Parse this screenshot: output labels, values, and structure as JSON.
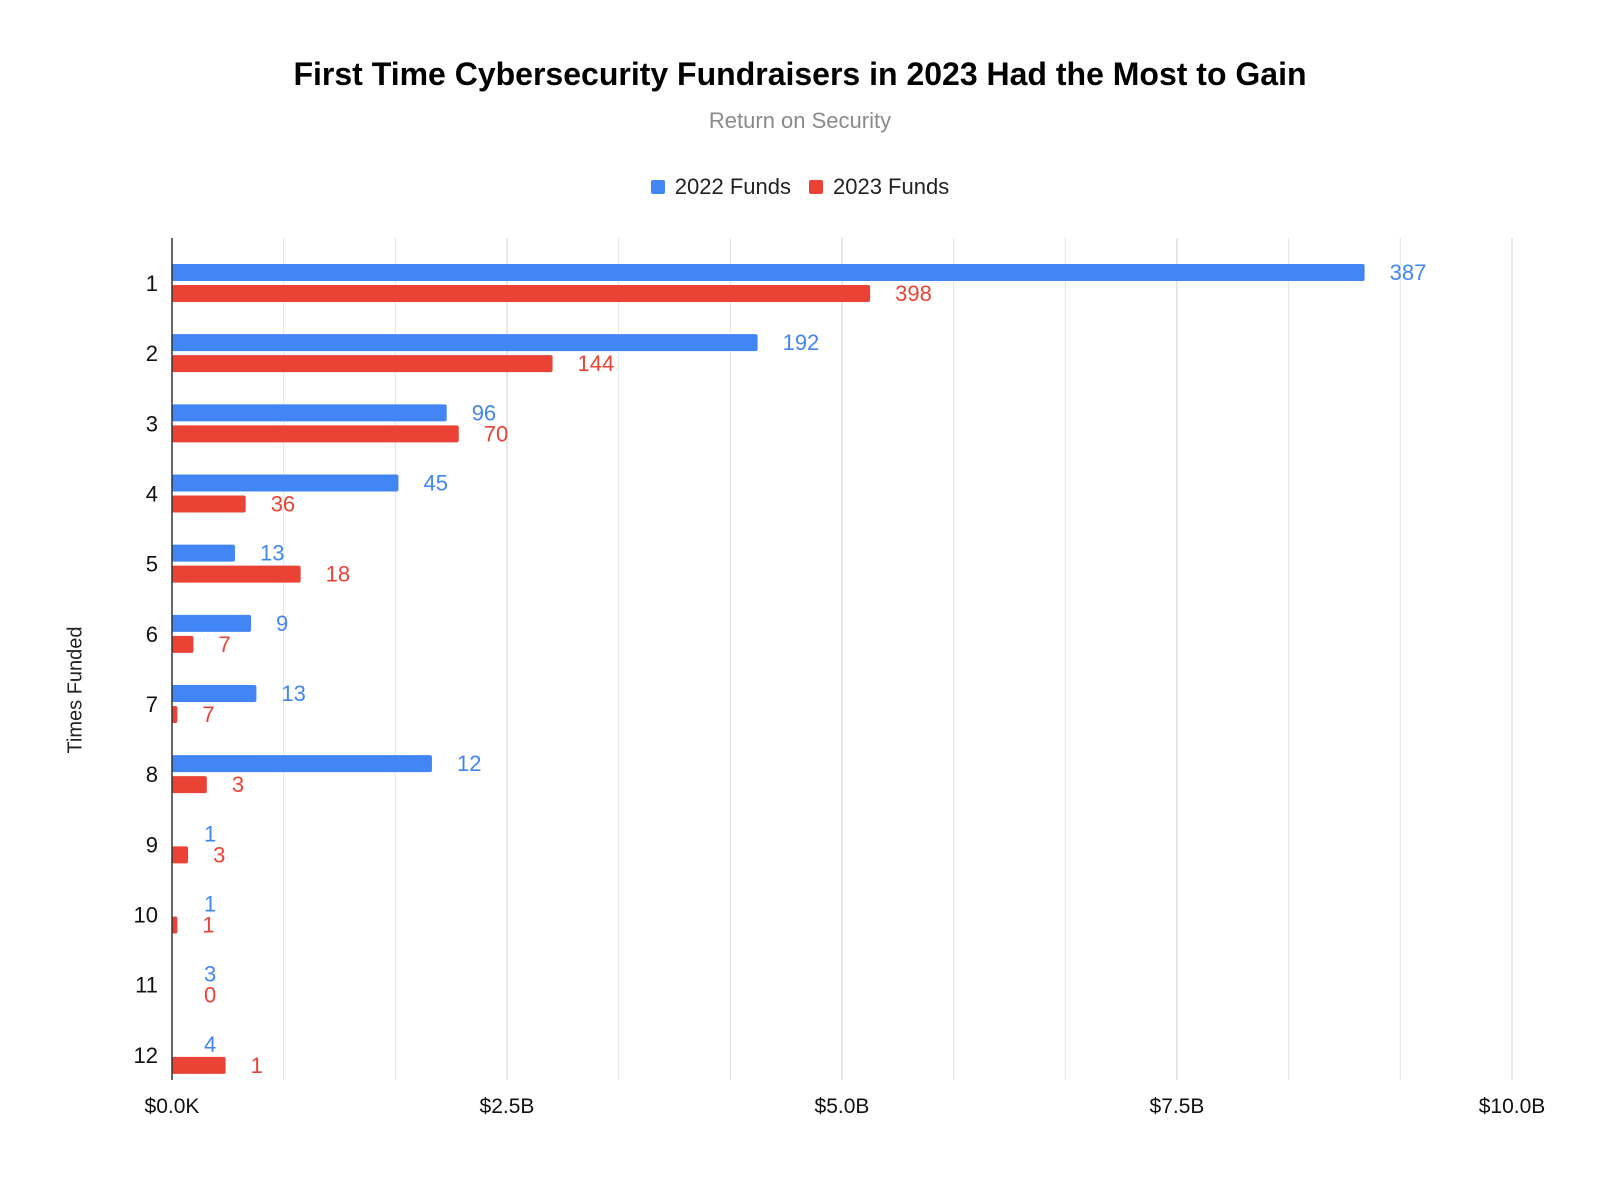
{
  "chart_data": {
    "type": "bar",
    "orientation": "horizontal",
    "title": "First Time Cybersecurity Fundraisers in 2023 Had the Most to Gain",
    "subtitle": "Return on Security",
    "ylabel": "Times Funded",
    "xlabel": "",
    "categories": [
      "1",
      "2",
      "3",
      "4",
      "5",
      "6",
      "7",
      "8",
      "9",
      "10",
      "11",
      "12"
    ],
    "x_ticks": [
      "$0.0K",
      "$2.5B",
      "$5.0B",
      "$7.5B",
      "$10.0B"
    ],
    "xlim": [
      0,
      10
    ],
    "x_unit": "$B",
    "grid": true,
    "legend_position": "top",
    "series": [
      {
        "name": "2022 Funds",
        "color": "#4285f4",
        "values": [
          8.9,
          4.37,
          2.05,
          1.69,
          0.47,
          0.59,
          0.63,
          1.94,
          0,
          0,
          0,
          0
        ],
        "labels": [
          "387",
          "192",
          "96",
          "45",
          "13",
          "9",
          "13",
          "12",
          "1",
          "1",
          "3",
          "4"
        ]
      },
      {
        "name": "2023 Funds",
        "color": "#ea4335",
        "values": [
          5.21,
          2.84,
          2.14,
          0.55,
          0.96,
          0.16,
          0.04,
          0.26,
          0.12,
          0.04,
          0,
          0.4
        ],
        "labels": [
          "398",
          "144",
          "70",
          "36",
          "18",
          "7",
          "7",
          "3",
          "3",
          "1",
          "0",
          "1"
        ]
      }
    ]
  }
}
